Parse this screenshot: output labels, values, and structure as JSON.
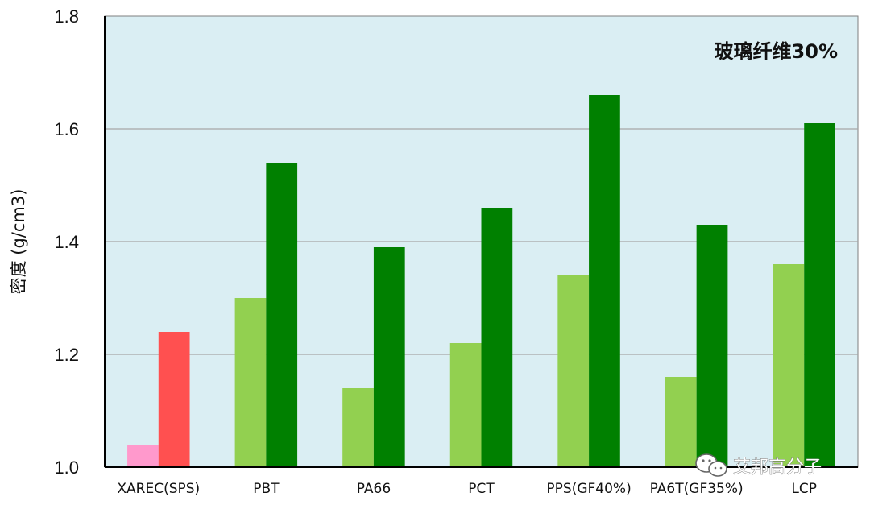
{
  "chart_data": {
    "type": "bar",
    "categories": [
      "XAREC(SPS)",
      "PBT",
      "PA66",
      "PCT",
      "PPS(GF40%)",
      "PA6T(GF35%)",
      "LCP"
    ],
    "series": [
      {
        "values": [
          1.04,
          1.3,
          1.14,
          1.22,
          1.34,
          1.16,
          1.36
        ]
      },
      {
        "values": [
          1.24,
          1.54,
          1.39,
          1.46,
          1.66,
          1.43,
          1.61
        ]
      }
    ],
    "ylabel": "密度 (g/cm3)",
    "ylim": [
      1.0,
      1.8
    ],
    "yticks": [
      1.0,
      1.2,
      1.4,
      1.6,
      1.8
    ],
    "ytick_labels": [
      "1.0",
      "1.2",
      "1.4",
      "1.6",
      "1.8"
    ],
    "grid": true,
    "annotation": "玻璃纤维30%",
    "colors": {
      "series_0": "#92d050",
      "series_1": "#008000",
      "highlight_series_0": "#ff99cc",
      "highlight_series_1": "#ff5050",
      "plot_background": "#daeef3",
      "gridline": "#a6a6a6",
      "axis": "#000000"
    },
    "highlight_category": "XAREC(SPS)"
  },
  "watermark": {
    "icon": "wechat-icon",
    "text": "艾邦高分子"
  }
}
